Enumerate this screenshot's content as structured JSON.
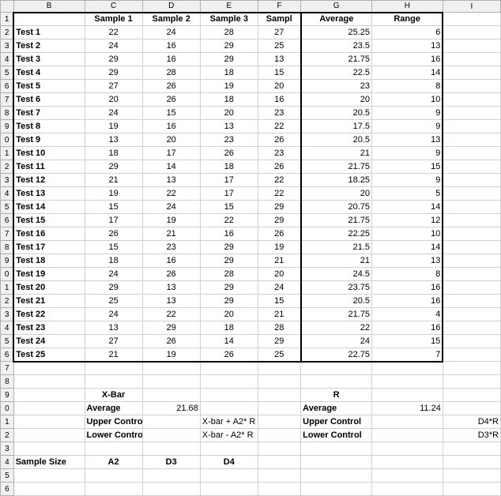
{
  "col_labels": [
    "",
    "B",
    "C",
    "D",
    "E",
    "F",
    "G",
    "H",
    "I"
  ],
  "row_labels": [
    "1",
    "2",
    "3",
    "4",
    "5",
    "6",
    "7",
    "8",
    "9",
    "0",
    "1",
    "2",
    "3",
    "4",
    "5",
    "6",
    "7",
    "8",
    "9",
    "0",
    "1",
    "2",
    "3",
    "4",
    "5",
    "6",
    "7",
    "8",
    "9",
    "0",
    "1",
    "2",
    "3",
    "4",
    "5",
    "6"
  ],
  "header_row": {
    "sample1": "Sample 1",
    "sample2": "Sample 2",
    "sample3": "Sample 3",
    "sample4": "Sampl",
    "average": "Average",
    "range": "Range"
  },
  "rows": [
    {
      "name": "Test 1",
      "s": [
        22,
        24,
        28,
        27
      ],
      "avg": "25.25",
      "rng": 6
    },
    {
      "name": "Test 2",
      "s": [
        24,
        16,
        29,
        25
      ],
      "avg": "23.5",
      "rng": 13
    },
    {
      "name": "Test 3",
      "s": [
        29,
        16,
        29,
        13
      ],
      "avg": "21.75",
      "rng": 16
    },
    {
      "name": "Test 4",
      "s": [
        29,
        28,
        18,
        15
      ],
      "avg": "22.5",
      "rng": 14
    },
    {
      "name": "Test 5",
      "s": [
        27,
        26,
        19,
        20
      ],
      "avg": "23",
      "rng": 8
    },
    {
      "name": "Test 6",
      "s": [
        20,
        26,
        18,
        16
      ],
      "avg": "20",
      "rng": 10
    },
    {
      "name": "Test 7",
      "s": [
        24,
        15,
        20,
        23
      ],
      "avg": "20.5",
      "rng": 9
    },
    {
      "name": "Test 8",
      "s": [
        19,
        16,
        13,
        22
      ],
      "avg": "17.5",
      "rng": 9
    },
    {
      "name": "Test 9",
      "s": [
        13,
        20,
        23,
        26
      ],
      "avg": "20.5",
      "rng": 13
    },
    {
      "name": "Test 10",
      "s": [
        18,
        17,
        26,
        23
      ],
      "avg": "21",
      "rng": 9
    },
    {
      "name": "Test 11",
      "s": [
        29,
        14,
        18,
        26
      ],
      "avg": "21.75",
      "rng": 15
    },
    {
      "name": "Test 12",
      "s": [
        21,
        13,
        17,
        22
      ],
      "avg": "18.25",
      "rng": 9
    },
    {
      "name": "Test 13",
      "s": [
        19,
        22,
        17,
        22
      ],
      "avg": "20",
      "rng": 5
    },
    {
      "name": "Test 14",
      "s": [
        15,
        24,
        15,
        29
      ],
      "avg": "20.75",
      "rng": 14
    },
    {
      "name": "Test 15",
      "s": [
        17,
        19,
        22,
        29
      ],
      "avg": "21.75",
      "rng": 12
    },
    {
      "name": "Test 16",
      "s": [
        26,
        21,
        16,
        26
      ],
      "avg": "22.25",
      "rng": 10
    },
    {
      "name": "Test 17",
      "s": [
        15,
        23,
        29,
        19
      ],
      "avg": "21.5",
      "rng": 14
    },
    {
      "name": "Test 18",
      "s": [
        18,
        16,
        29,
        21
      ],
      "avg": "21",
      "rng": 13
    },
    {
      "name": "Test 19",
      "s": [
        24,
        26,
        28,
        20
      ],
      "avg": "24.5",
      "rng": 8
    },
    {
      "name": "Test 20",
      "s": [
        29,
        13,
        29,
        24
      ],
      "avg": "23.75",
      "rng": 16
    },
    {
      "name": "Test 21",
      "s": [
        25,
        13,
        29,
        15
      ],
      "avg": "20.5",
      "rng": 16
    },
    {
      "name": "Test 22",
      "s": [
        24,
        22,
        20,
        21
      ],
      "avg": "21.75",
      "rng": 4
    },
    {
      "name": "Test 23",
      "s": [
        13,
        29,
        18,
        28
      ],
      "avg": "22",
      "rng": 16
    },
    {
      "name": "Test 24",
      "s": [
        27,
        26,
        14,
        29
      ],
      "avg": "24",
      "rng": 15
    },
    {
      "name": "Test 25",
      "s": [
        21,
        19,
        26,
        25
      ],
      "avg": "22.75",
      "rng": 7
    }
  ],
  "xbar": {
    "title": "X-Bar",
    "avg_label": "Average",
    "avg_val": "21.68",
    "upper": "Upper Control",
    "upper_f": "X-bar + A2* R",
    "lower": "Lower Control",
    "lower_f": "X-bar - A2* R"
  },
  "r": {
    "title": "R",
    "avg_label": "Average",
    "avg_val": "11.24",
    "upper": "Upper Control",
    "upper_f": "D4*R",
    "lower": "Lower Control",
    "lower_f": "D3*R"
  },
  "consts": {
    "sample_size": "Sample Size",
    "A2": "A2",
    "D3": "D3",
    "D4": "D4"
  }
}
